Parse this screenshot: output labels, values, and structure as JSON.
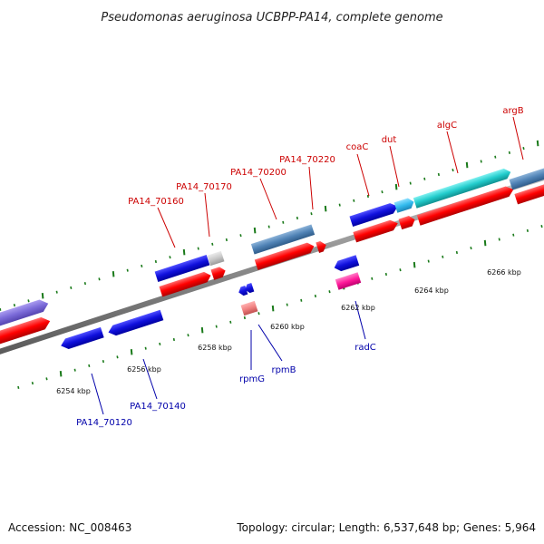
{
  "title": "Pseudomonas aeruginosa UCBPP-PA14, complete genome",
  "footer": {
    "accession": "Accession: NC_008463",
    "summary": "Topology: circular; Length: 6,537,648 bp; Genes: 5,964"
  },
  "scale_labels": [
    "6254 kbp",
    "6256 kbp",
    "6258 kbp",
    "6260 kbp",
    "6262 kbp",
    "6264 kbp",
    "6266 kbp"
  ],
  "top_gene_labels": [
    "PA14_70160",
    "PA14_70170",
    "PA14_70200",
    "PA14_70220",
    "coaC",
    "dut",
    "algC",
    "argB"
  ],
  "bottom_gene_labels": [
    "PA14_70120",
    "PA14_70140",
    "rpmG",
    "rpmB",
    "radC"
  ],
  "colors": {
    "backbone": "#8c8c8c",
    "forward_cds": "#2020e0",
    "cds_red": "#ff0000",
    "tick": "#1a7a1a",
    "label_top": "#cc0000",
    "label_bottom": "#0000aa",
    "cyan": "#22cccc",
    "steel": "#4f82b5",
    "purple": "#7a6ad8",
    "pink": "#ff1a9a",
    "gray": "#c8c8c8",
    "salmon": "#f08080"
  }
}
